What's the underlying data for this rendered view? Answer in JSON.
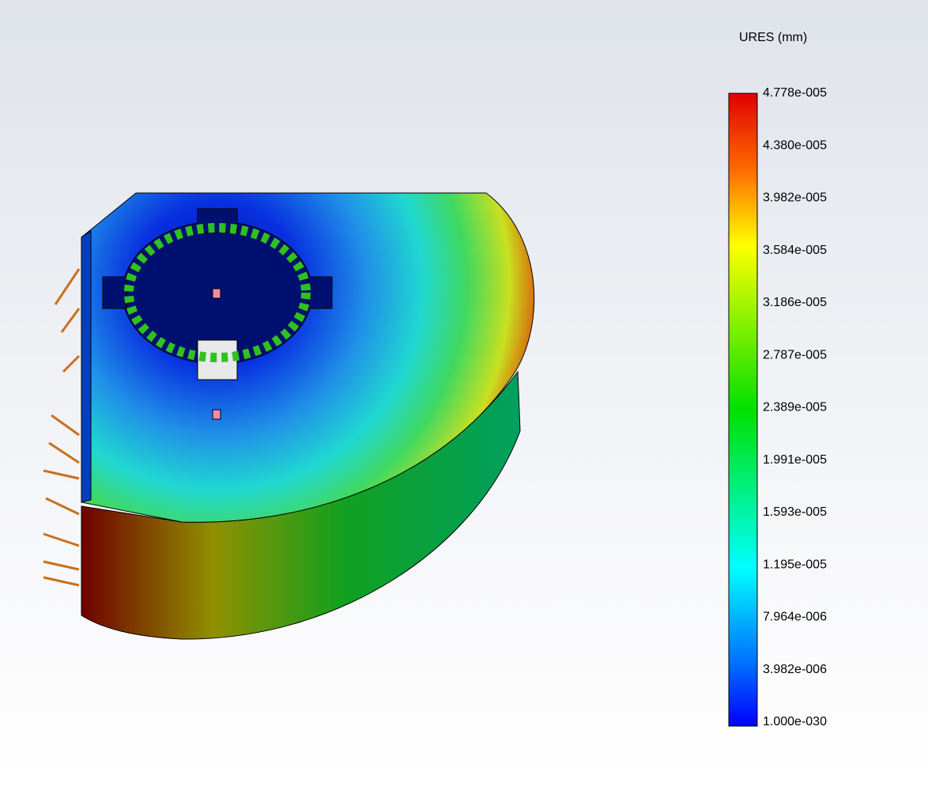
{
  "legend": {
    "title": "URES (mm)",
    "labels": [
      "4.778e-005",
      "4.380e-005",
      "3.982e-005",
      "3.584e-005",
      "3.186e-005",
      "2.787e-005",
      "2.389e-005",
      "1.991e-005",
      "1.593e-005",
      "1.195e-005",
      "7.964e-006",
      "3.982e-006",
      "1.000e-030"
    ]
  }
}
